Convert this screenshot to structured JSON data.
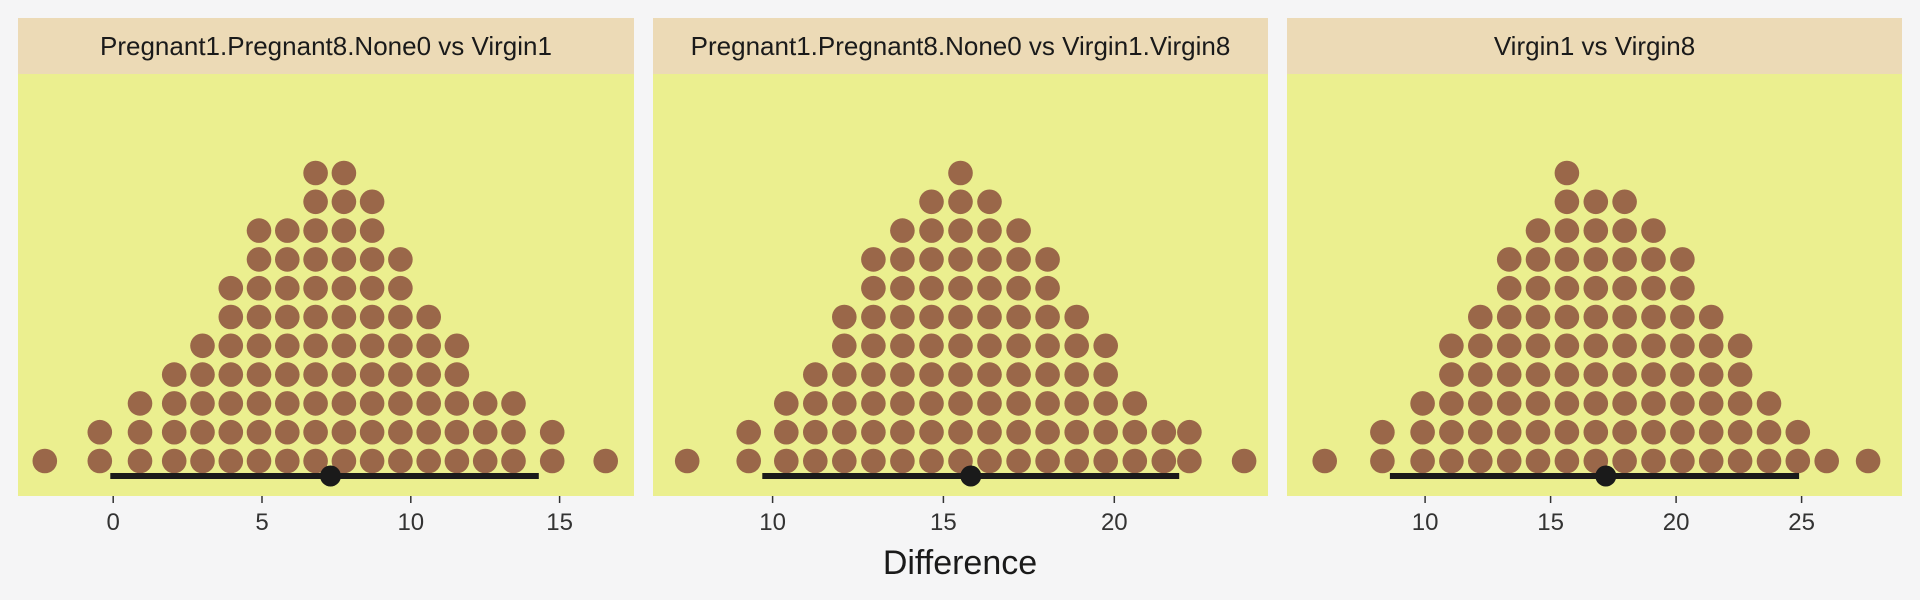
{
  "chart_data": {
    "type": "dotplot",
    "xlabel": "Difference",
    "colors": {
      "page_background": "#f5f5f6",
      "panel_background": "#ebef8f",
      "strip_background": "#ecdab6",
      "dot": "#9a6749",
      "interval": "#1a1a1a"
    },
    "panels": [
      {
        "title": "Pregnant1.Pregnant8.None0 vs Virgin1",
        "xlim": [
          -3.2,
          17.5
        ],
        "xticks": [
          0,
          5,
          10,
          15
        ],
        "dot_columns": [
          {
            "x": -2.3,
            "count": 1
          },
          {
            "x": -0.45,
            "count": 2
          },
          {
            "x": 0.9,
            "count": 3
          },
          {
            "x": 2.05,
            "count": 4
          },
          {
            "x": 3.0,
            "count": 5
          },
          {
            "x": 3.95,
            "count": 7
          },
          {
            "x": 4.9,
            "count": 9
          },
          {
            "x": 5.85,
            "count": 9
          },
          {
            "x": 6.8,
            "count": 11
          },
          {
            "x": 7.75,
            "count": 11
          },
          {
            "x": 8.7,
            "count": 10
          },
          {
            "x": 9.65,
            "count": 8
          },
          {
            "x": 10.6,
            "count": 6
          },
          {
            "x": 11.55,
            "count": 5
          },
          {
            "x": 12.5,
            "count": 3
          },
          {
            "x": 13.45,
            "count": 3
          },
          {
            "x": 14.75,
            "count": 2
          },
          {
            "x": 16.55,
            "count": 1
          }
        ],
        "estimate": 7.3,
        "interval": [
          -0.1,
          14.3
        ]
      },
      {
        "title": "Pregnant1.Pregnant8.None0 vs Virgin1.Virgin8",
        "xlim": [
          6.5,
          24.5
        ],
        "xticks": [
          10,
          15,
          20
        ],
        "dot_columns": [
          {
            "x": 7.5,
            "count": 1
          },
          {
            "x": 9.3,
            "count": 2
          },
          {
            "x": 10.4,
            "count": 3
          },
          {
            "x": 11.25,
            "count": 4
          },
          {
            "x": 12.1,
            "count": 6
          },
          {
            "x": 12.95,
            "count": 8
          },
          {
            "x": 13.8,
            "count": 9
          },
          {
            "x": 14.65,
            "count": 10
          },
          {
            "x": 15.5,
            "count": 11
          },
          {
            "x": 16.35,
            "count": 10
          },
          {
            "x": 17.2,
            "count": 9
          },
          {
            "x": 18.05,
            "count": 8
          },
          {
            "x": 18.9,
            "count": 6
          },
          {
            "x": 19.75,
            "count": 5
          },
          {
            "x": 20.6,
            "count": 3
          },
          {
            "x": 21.45,
            "count": 2
          },
          {
            "x": 22.2,
            "count": 2
          },
          {
            "x": 23.8,
            "count": 1
          }
        ],
        "estimate": 15.8,
        "interval": [
          9.7,
          21.9
        ]
      },
      {
        "title": "Virgin1 vs Virgin8",
        "xlim": [
          4.5,
          29.0
        ],
        "xticks": [
          10,
          15,
          20,
          25
        ],
        "dot_columns": [
          {
            "x": 6.0,
            "count": 1
          },
          {
            "x": 8.3,
            "count": 2
          },
          {
            "x": 9.9,
            "count": 3
          },
          {
            "x": 11.05,
            "count": 5
          },
          {
            "x": 12.2,
            "count": 6
          },
          {
            "x": 13.35,
            "count": 8
          },
          {
            "x": 14.5,
            "count": 9
          },
          {
            "x": 15.65,
            "count": 11
          },
          {
            "x": 16.8,
            "count": 10
          },
          {
            "x": 17.95,
            "count": 10
          },
          {
            "x": 19.1,
            "count": 9
          },
          {
            "x": 20.25,
            "count": 8
          },
          {
            "x": 21.4,
            "count": 6
          },
          {
            "x": 22.55,
            "count": 5
          },
          {
            "x": 23.7,
            "count": 3
          },
          {
            "x": 24.85,
            "count": 2
          },
          {
            "x": 26.0,
            "count": 1
          },
          {
            "x": 27.65,
            "count": 1
          }
        ],
        "estimate": 17.2,
        "interval": [
          8.6,
          24.9
        ]
      }
    ]
  }
}
